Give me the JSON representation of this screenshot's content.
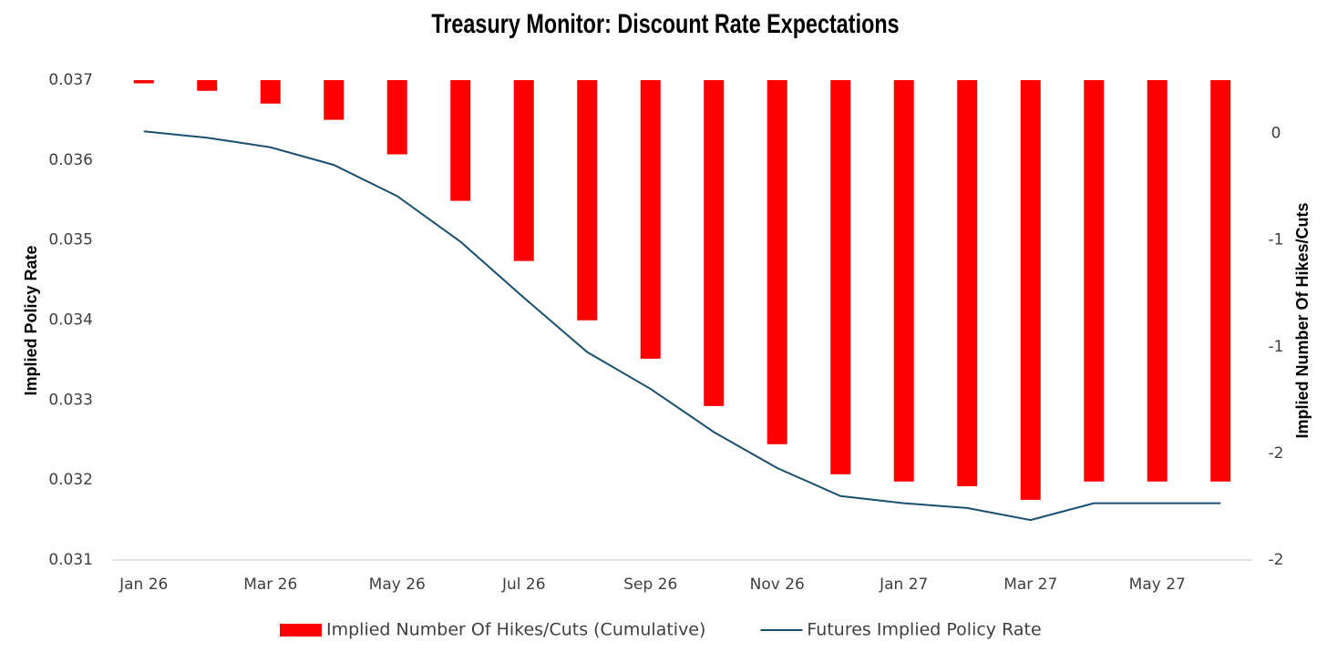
{
  "chart_data": {
    "type": "bar-line",
    "title": "Treasury Monitor: Discount Rate Expectations",
    "y_label": "Implied Policy Rate",
    "y2_label": "Implied Number Of Hikes/Cuts",
    "categories": [
      "Jan 26",
      null,
      "Mar 26",
      null,
      "May 26",
      null,
      "Jul 26",
      null,
      "Sep 26",
      null,
      "Nov 26",
      null,
      "Jan 27",
      null,
      "Mar 27",
      null,
      "May 27",
      null
    ],
    "series": [
      {
        "name": "Implied Number Of Hikes/Cuts (Cumulative)",
        "type": "bar",
        "axis": "y2",
        "color": "#ff0000",
        "values": [
          0.235,
          0.2,
          0.14,
          0.064,
          -0.098,
          -0.316,
          -0.598,
          -0.876,
          -1.056,
          -1.278,
          -1.457,
          -1.598,
          -1.632,
          -1.654,
          -1.718,
          -1.632,
          -1.632,
          -1.632
        ]
      },
      {
        "name": "Futures Implied Policy Rate",
        "type": "line",
        "axis": "y",
        "color": "#1a4f6e",
        "values": [
          0.03636,
          0.03628,
          0.03616,
          0.03594,
          0.03555,
          0.03498,
          0.03428,
          0.0336,
          0.03314,
          0.0326,
          0.03215,
          0.0318,
          0.03171,
          0.03165,
          0.0315,
          0.03171,
          0.03171,
          0.03171
        ]
      }
    ],
    "ylim": [
      0.031,
      0.037
    ],
    "yticks": [
      0.031,
      0.032,
      0.033,
      0.034,
      0.035,
      0.036,
      0.037
    ],
    "y2lim": [
      -2,
      0.25
    ],
    "y2ticks": [
      -2,
      {
        "value": -1.5,
        "label": "-2"
      },
      -1,
      {
        "value": -0.5,
        "label": "-1"
      },
      0
    ],
    "grid": false,
    "legend": "bottom"
  }
}
